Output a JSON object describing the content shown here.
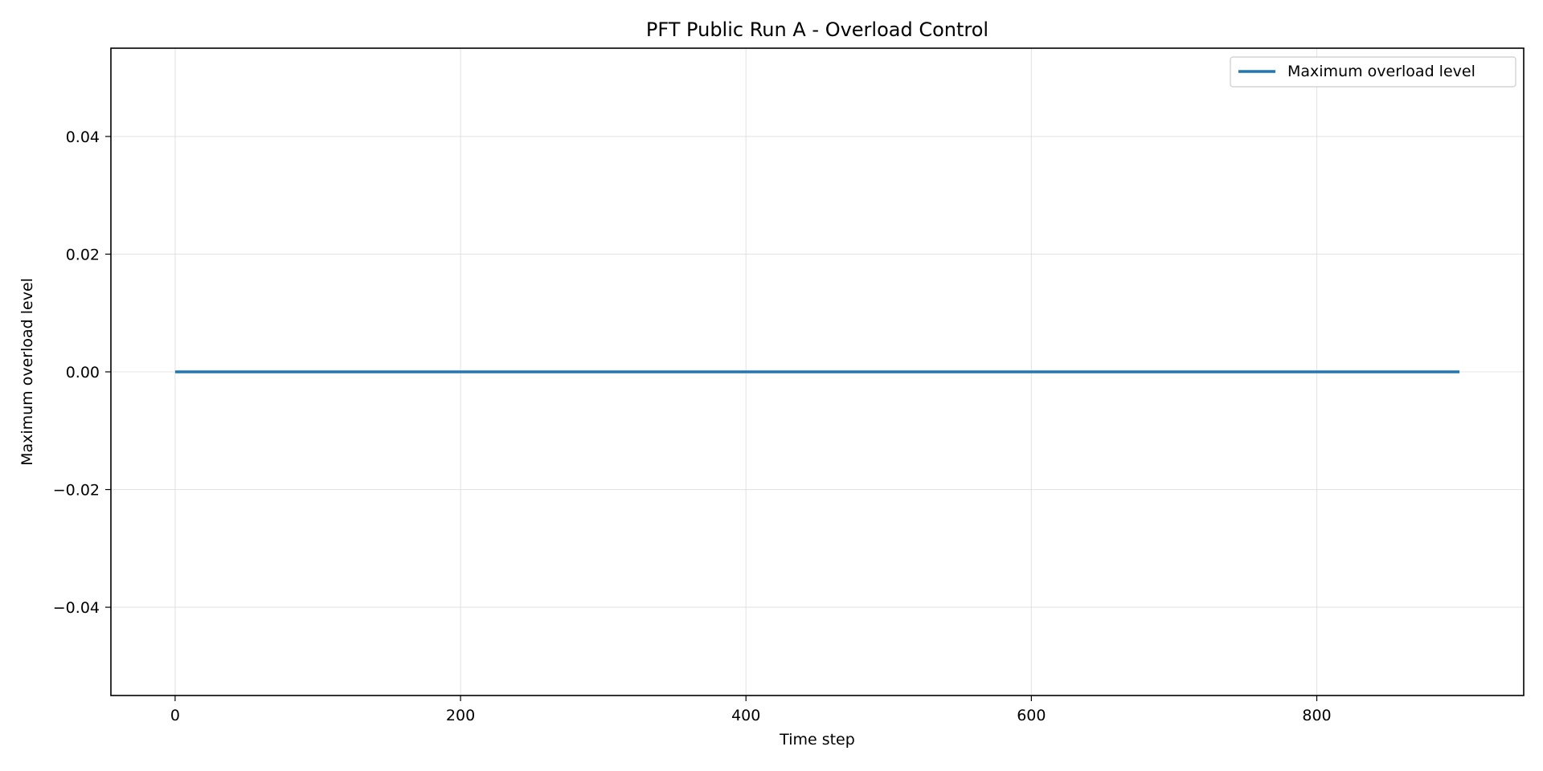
{
  "chart_data": {
    "type": "line",
    "title": "PFT Public Run A - Overload Control",
    "xlabel": "Time step",
    "ylabel": "Maximum overload level",
    "xlim": [
      -45,
      945
    ],
    "ylim": [
      -0.055,
      0.055
    ],
    "x_ticks": [
      0,
      200,
      400,
      600,
      800
    ],
    "y_ticks": [
      -0.04,
      -0.02,
      0.0,
      0.02,
      0.04
    ],
    "x_tick_labels": [
      "0",
      "200",
      "400",
      "600",
      "800"
    ],
    "y_tick_labels": [
      "−0.04",
      "−0.02",
      "0.00",
      "0.02",
      "0.04"
    ],
    "grid": true,
    "legend_position": "top-right",
    "series": [
      {
        "name": "Maximum overload level",
        "color": "#1f77b4",
        "x": [
          0,
          900
        ],
        "y": [
          0,
          0
        ]
      }
    ]
  }
}
